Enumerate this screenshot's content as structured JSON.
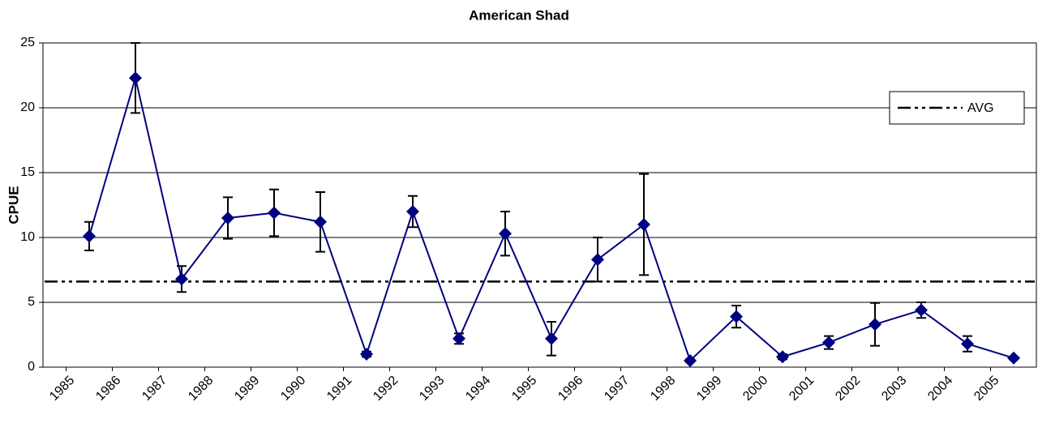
{
  "chart_data": {
    "type": "line",
    "title": "American Shad",
    "y_label": "CPUE",
    "categories": [
      "1985",
      "1986",
      "1987",
      "1988",
      "1989",
      "1990",
      "1991",
      "1992",
      "1993",
      "1994",
      "1995",
      "1996",
      "1997",
      "1998",
      "1999",
      "2000",
      "2001",
      "2002",
      "2003",
      "2004",
      "2005"
    ],
    "series": [
      {
        "color": "#000080",
        "values": [
          10.1,
          22.3,
          6.8,
          11.5,
          11.9,
          11.2,
          1.0,
          12.0,
          2.2,
          10.3,
          2.2,
          8.3,
          11.0,
          0.5,
          3.9,
          0.8,
          1.9,
          3.3,
          4.4,
          1.8,
          0.7
        ],
        "errors": [
          1.1,
          2.7,
          1.0,
          1.6,
          1.8,
          2.3,
          0.2,
          1.2,
          0.4,
          1.7,
          1.3,
          1.7,
          3.9,
          0.1,
          0.85,
          0.2,
          0.5,
          1.65,
          0.6,
          0.6,
          0.1
        ]
      }
    ],
    "average": {
      "name": "AVG",
      "value": 6.6,
      "color": "#000000"
    },
    "ylim": [
      0,
      25
    ],
    "yticks": [
      0,
      5,
      10,
      15,
      20,
      25
    ],
    "grid": true,
    "legend": "top-right"
  }
}
